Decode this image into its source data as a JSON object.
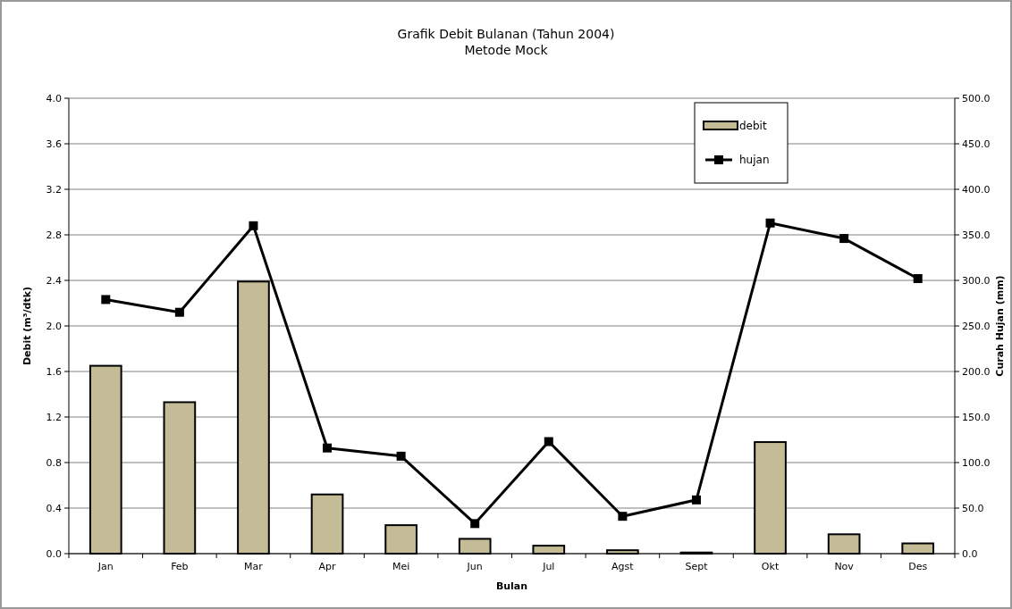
{
  "chart_data": {
    "type": "bar",
    "title": "Grafik Debit Bulanan (Tahun 2004)",
    "subtitle": "Metode Mock",
    "xlabel": "Bulan",
    "ylabel": "Debit (m³/dtk)",
    "y2label": "Curah Hujan (mm)",
    "categories": [
      "Jan",
      "Feb",
      "Mar",
      "Apr",
      "Mei",
      "Jun",
      "Jul",
      "Agst",
      "Sept",
      "Okt",
      "Nov",
      "Des"
    ],
    "series": [
      {
        "name": "debit",
        "color": "#c4bc96",
        "values": [
          1.65,
          1.33,
          2.39,
          0.52,
          0.25,
          0.13,
          0.07,
          0.03,
          0.01,
          0.98,
          0.17,
          0.09
        ]
      },
      {
        "name": "hujan",
        "type": "line",
        "axis": "y2",
        "color": "#000000",
        "marker": "square",
        "values": [
          279,
          265,
          360,
          116,
          107,
          33,
          123,
          41,
          59,
          363,
          346,
          302
        ]
      }
    ],
    "ylim": [
      0,
      4
    ],
    "yticks": [
      {
        "value": 0,
        "label": "0.0"
      },
      {
        "value": 0.4,
        "label": "0.4"
      },
      {
        "value": 0.8,
        "label": "0.8"
      },
      {
        "value": 1.2,
        "label": "1.2"
      },
      {
        "value": 1.6,
        "label": "1.6"
      },
      {
        "value": 2,
        "label": "2.0"
      },
      {
        "value": 2.4,
        "label": "2.4"
      },
      {
        "value": 2.8,
        "label": "2.8"
      },
      {
        "value": 3.2,
        "label": "3.2"
      },
      {
        "value": 3.6,
        "label": "3.6"
      },
      {
        "value": 4,
        "label": "4.0"
      }
    ],
    "y2lim": [
      0,
      500
    ],
    "y2ticks": [
      {
        "value": 0,
        "label": "0.0"
      },
      {
        "value": 50,
        "label": "50.0"
      },
      {
        "value": 100,
        "label": "100.0"
      },
      {
        "value": 150,
        "label": "150.0"
      },
      {
        "value": 200,
        "label": "200.0"
      },
      {
        "value": 250,
        "label": "250.0"
      },
      {
        "value": 300,
        "label": "300.0"
      },
      {
        "value": 350,
        "label": "350.0"
      },
      {
        "value": 400,
        "label": "400.0"
      },
      {
        "value": 450,
        "label": "450.0"
      },
      {
        "value": 500,
        "label": "500.0"
      }
    ],
    "grid": "y",
    "legend": "top right"
  }
}
